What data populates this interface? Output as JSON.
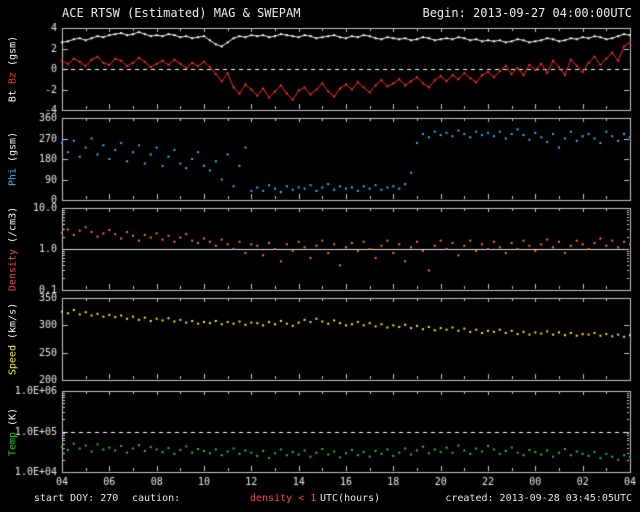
{
  "header": {
    "begin": "Begin: 2013-09-27 04:00:00UTC"
  },
  "footer": {
    "start_doy": "start DOY: 270",
    "caution_label": "caution:",
    "caution_value": "density < 1",
    "created": "created: 2013-09-28 03:45:05UTC"
  },
  "colors": {
    "background": "#000000",
    "frame": "#c8c8c8",
    "text": "#e6e6e6",
    "bt": "#f5f5f5",
    "bz": "#ff2a2a",
    "phi": "#33bbff",
    "density": "#ff7733",
    "speed": "#ffee22",
    "temp": "#22cc22",
    "caution": "#ff4444"
  },
  "chart_data": {
    "type": "line",
    "title": "ACE RTSW (Estimated) MAG & SWEPAM",
    "x": {
      "start": 4,
      "step": 0.25,
      "lim": [
        4,
        28
      ],
      "major_tick_step": 2,
      "minor_tick_step": 1,
      "tick_labels": [
        "04",
        "06",
        "08",
        "10",
        "12",
        "14",
        "16",
        "18",
        "20",
        "22",
        "00",
        "02",
        "04"
      ],
      "label": "UTC(hours)"
    },
    "panels": [
      {
        "id": "mag",
        "scale": "linear",
        "ylim": [
          -4,
          4
        ],
        "yticks": [
          {
            "v": 4,
            "label": "4"
          },
          {
            "v": 2,
            "label": "2"
          },
          {
            "v": 0,
            "label": "0"
          },
          {
            "v": -2,
            "label": "-2"
          },
          {
            "v": -4,
            "label": "-4"
          }
        ],
        "ref_lines": [
          {
            "v": 0,
            "style": "dashed",
            "color": "#ffffff"
          }
        ],
        "ylabel_parts": [
          {
            "text": "Bt",
            "color": "#f5f5f5"
          },
          {
            "text": "Bz",
            "color": "#ff2a2a"
          },
          {
            "text": "(gsm)",
            "color": "#f5f5f5"
          }
        ],
        "series": [
          {
            "name": "Bt",
            "color": "#f5f5f5",
            "style": "line",
            "values": [
              2.6,
              2.7,
              2.9,
              3.0,
              2.8,
              3.0,
              3.2,
              3.1,
              3.3,
              3.4,
              3.5,
              3.3,
              3.4,
              3.6,
              3.4,
              3.2,
              3.3,
              3.2,
              3.4,
              3.3,
              3.1,
              3.2,
              3.0,
              3.1,
              3.2,
              2.8,
              2.4,
              2.2,
              2.6,
              3.0,
              3.2,
              3.1,
              3.3,
              3.2,
              3.3,
              3.1,
              3.2,
              3.4,
              3.3,
              3.2,
              3.1,
              3.3,
              3.2,
              3.0,
              3.1,
              3.2,
              3.3,
              3.1,
              3.0,
              3.2,
              3.1,
              3.3,
              3.2,
              3.0,
              2.9,
              3.1,
              3.0,
              2.9,
              3.0,
              2.8,
              2.9,
              3.1,
              3.0,
              2.8,
              2.9,
              3.0,
              2.9,
              3.1,
              3.0,
              2.8,
              2.9,
              2.7,
              2.8,
              2.7,
              2.8,
              2.6,
              2.7,
              2.9,
              2.8,
              2.6,
              2.7,
              2.8,
              3.0,
              2.9,
              2.7,
              2.8,
              3.0,
              2.9,
              3.1,
              3.0,
              3.2,
              3.1,
              2.9,
              3.0,
              3.2,
              3.4,
              3.3
            ]
          },
          {
            "name": "Bz",
            "color": "#ff2a2a",
            "style": "line",
            "values": [
              0.8,
              0.5,
              1.0,
              0.7,
              0.3,
              0.9,
              1.2,
              0.6,
              0.4,
              1.0,
              0.8,
              0.3,
              0.6,
              1.1,
              0.7,
              0.2,
              0.5,
              0.8,
              0.4,
              0.9,
              0.5,
              0.1,
              0.6,
              0.3,
              0.7,
              0.2,
              -0.5,
              -1.2,
              -0.4,
              -1.8,
              -2.4,
              -1.5,
              -2.0,
              -2.6,
              -1.9,
              -2.8,
              -2.2,
              -1.6,
              -2.4,
              -3.0,
              -2.1,
              -1.8,
              -2.5,
              -2.0,
              -1.4,
              -2.2,
              -2.7,
              -1.9,
              -1.5,
              -2.0,
              -1.3,
              -1.8,
              -2.3,
              -1.6,
              -1.1,
              -1.7,
              -1.4,
              -1.0,
              -1.6,
              -1.2,
              -0.8,
              -1.4,
              -1.8,
              -1.1,
              -0.7,
              -1.2,
              -0.6,
              -1.0,
              -0.4,
              -0.9,
              -1.3,
              -0.6,
              -0.3,
              -0.8,
              -0.2,
              0.3,
              -0.5,
              0.1,
              -0.6,
              0.4,
              -0.1,
              0.5,
              -0.4,
              0.8,
              0.2,
              -0.6,
              0.9,
              0.3,
              -0.3,
              0.6,
              1.2,
              0.4,
              1.0,
              1.6,
              0.8,
              2.2,
              2.6
            ]
          }
        ]
      },
      {
        "id": "phi",
        "scale": "linear",
        "ylim": [
          0,
          360
        ],
        "yticks": [
          {
            "v": 360,
            "label": "360"
          },
          {
            "v": 270,
            "label": "270"
          },
          {
            "v": 180,
            "label": "180"
          },
          {
            "v": 90,
            "label": "90"
          },
          {
            "v": 0,
            "label": "0"
          }
        ],
        "ref_lines": [],
        "ylabel_parts": [
          {
            "text": "Phi",
            "color": "#33bbff"
          },
          {
            "text": "(gsm)",
            "color": "#f5f5f5"
          }
        ],
        "series": [
          {
            "name": "Phi",
            "color": "#33bbff",
            "style": "dots",
            "values": [
              250,
              210,
              260,
              190,
              230,
              270,
              200,
              240,
              180,
              220,
              250,
              170,
              210,
              240,
              160,
              200,
              230,
              150,
              190,
              220,
              160,
              140,
              180,
              210,
              150,
              130,
              170,
              90,
              200,
              60,
              150,
              230,
              40,
              55,
              40,
              65,
              50,
              35,
              60,
              45,
              55,
              50,
              65,
              40,
              55,
              70,
              45,
              60,
              50,
              55,
              40,
              60,
              50,
              65,
              45,
              55,
              60,
              50,
              70,
              120,
              250,
              290,
              275,
              300,
              285,
              295,
              280,
              305,
              290,
              275,
              300,
              285,
              295,
              280,
              300,
              270,
              290,
              310,
              285,
              265,
              295,
              275,
              255,
              290,
              230,
              270,
              300,
              260,
              280,
              290,
              270,
              250,
              300,
              280,
              260,
              290,
              275
            ]
          }
        ]
      },
      {
        "id": "density",
        "scale": "log",
        "ylim": [
          0.1,
          10
        ],
        "yticks": [
          {
            "v": 10,
            "label": "10.0"
          },
          {
            "v": 1,
            "label": "1.0"
          },
          {
            "v": 0.1,
            "label": "0.1"
          }
        ],
        "ref_lines": [
          {
            "v": 1,
            "style": "solid",
            "color": "#dddddd"
          }
        ],
        "ylabel_parts": [
          {
            "text": "Density",
            "color": "#ff4433"
          },
          {
            "text": "(/cm3)",
            "color": "#f5f5f5"
          }
        ],
        "series": [
          {
            "name": "Density",
            "color": "#ff7733",
            "style": "dots",
            "values": [
              2.5,
              3.0,
              2.2,
              2.8,
              3.4,
              2.6,
              2.0,
              2.4,
              2.9,
              2.3,
              1.8,
              2.6,
              2.1,
              1.6,
              2.2,
              1.9,
              2.4,
              1.7,
              2.1,
              1.5,
              1.9,
              2.3,
              1.6,
              1.4,
              1.8,
              1.5,
              1.2,
              1.7,
              1.3,
              1.0,
              1.5,
              0.8,
              1.3,
              1.2,
              0.7,
              1.4,
              1.0,
              0.5,
              1.3,
              0.9,
              1.5,
              1.1,
              0.6,
              1.2,
              1.6,
              0.8,
              1.3,
              0.4,
              1.1,
              1.4,
              0.9,
              1.5,
              1.0,
              0.6,
              1.2,
              1.6,
              0.8,
              1.3,
              0.5,
              1.1,
              1.5,
              0.9,
              0.3,
              1.2,
              1.6,
              1.0,
              1.4,
              0.7,
              1.2,
              1.6,
              0.9,
              1.3,
              1.0,
              1.5,
              1.1,
              0.8,
              1.4,
              1.0,
              1.6,
              1.2,
              0.9,
              1.3,
              1.7,
              1.1,
              1.5,
              0.8,
              1.2,
              1.6,
              1.3,
              1.0,
              1.4,
              1.8,
              1.2,
              1.6,
              1.1,
              1.5,
              1.3
            ]
          }
        ]
      },
      {
        "id": "speed",
        "scale": "linear",
        "ylim": [
          200,
          350
        ],
        "yticks": [
          {
            "v": 350,
            "label": "350"
          },
          {
            "v": 300,
            "label": "300"
          },
          {
            "v": 250,
            "label": "250"
          },
          {
            "v": 200,
            "label": "200"
          }
        ],
        "ref_lines": [],
        "ylabel_parts": [
          {
            "text": "Speed",
            "color": "#ffee22"
          },
          {
            "text": "(km/s)",
            "color": "#f5f5f5"
          }
        ],
        "series": [
          {
            "name": "Speed",
            "color": "#ffee22",
            "style": "dots",
            "values": [
              325,
              322,
              328,
              320,
              324,
              318,
              321,
              316,
              319,
              315,
              318,
              312,
              316,
              310,
              314,
              308,
              312,
              309,
              313,
              307,
              310,
              305,
              308,
              303,
              306,
              304,
              308,
              302,
              306,
              303,
              307,
              301,
              305,
              304,
              300,
              306,
              302,
              308,
              303,
              299,
              305,
              310,
              306,
              312,
              307,
              303,
              309,
              304,
              300,
              302,
              306,
              300,
              304,
              298,
              302,
              296,
              300,
              297,
              301,
              295,
              299,
              293,
              297,
              291,
              295,
              292,
              296,
              290,
              294,
              288,
              292,
              286,
              290,
              288,
              292,
              286,
              290,
              284,
              288,
              283,
              287,
              285,
              289,
              283,
              287,
              282,
              286,
              281,
              284,
              283,
              286,
              281,
              284,
              280,
              283,
              279,
              282
            ]
          }
        ]
      },
      {
        "id": "temp",
        "scale": "log",
        "ylim": [
          10000,
          1000000
        ],
        "yticks": [
          {
            "v": 1000000,
            "label": "1.0E+06"
          },
          {
            "v": 100000,
            "label": "1.0E+05"
          },
          {
            "v": 10000,
            "label": "1.0E+04"
          }
        ],
        "ref_lines": [
          {
            "v": 100000,
            "style": "dashed",
            "color": "#ffffff"
          }
        ],
        "ylabel_parts": [
          {
            "text": "Temp",
            "color": "#22cc22"
          },
          {
            "text": "(K)",
            "color": "#f5f5f5"
          }
        ],
        "series": [
          {
            "name": "Temp",
            "color": "#22cc22",
            "style": "dots",
            "values": [
              42000,
              35000,
              50000,
              38000,
              45000,
              32000,
              48000,
              36000,
              40000,
              34000,
              44000,
              30000,
              38000,
              46000,
              33000,
              41000,
              36000,
              31000,
              39000,
              28000,
              35000,
              43000,
              30000,
              37000,
              33000,
              29000,
              36000,
              26000,
              32000,
              38000,
              28000,
              34000,
              30000,
              25000,
              33000,
              22000,
              29000,
              36000,
              26000,
              31000,
              27000,
              34000,
              24000,
              30000,
              37000,
              27000,
              32000,
              23000,
              29000,
              35000,
              26000,
              31000,
              24000,
              33000,
              28000,
              36000,
              25000,
              30000,
              38000,
              27000,
              34000,
              42000,
              29000,
              36000,
              31000,
              40000,
              30000,
              45000,
              34000,
              28000,
              38000,
              32000,
              44000,
              36000,
              28000,
              33000,
              40000,
              30000,
              26000,
              35000,
              31000,
              27000,
              34000,
              24000,
              30000,
              37000,
              26000,
              32000,
              28000,
              25000,
              31000,
              22000,
              28000,
              24000,
              20000,
              26000,
              23000
            ]
          }
        ]
      }
    ]
  }
}
